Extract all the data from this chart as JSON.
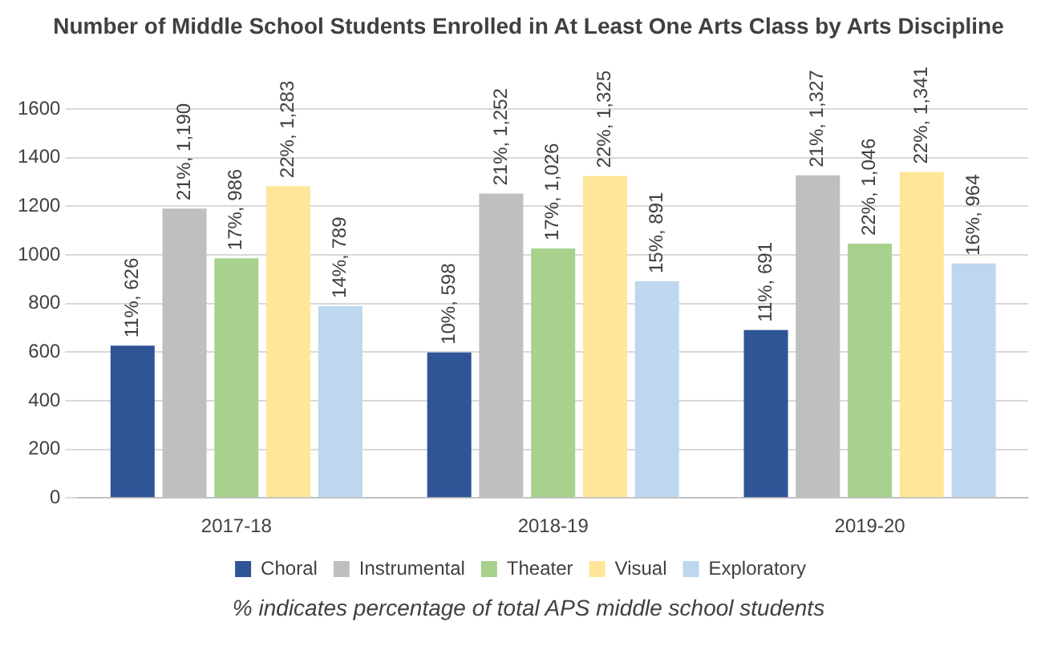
{
  "chart_data": {
    "type": "bar",
    "title": "Number of Middle School Students Enrolled in At Least One Arts Class by Arts Discipline",
    "categories": [
      "2017-18",
      "2018-19",
      "2019-20"
    ],
    "series": [
      {
        "name": "Choral",
        "color": "#2f5597",
        "values": [
          626,
          598,
          691
        ],
        "value_labels": [
          "11%, 626",
          "10%, 598",
          "11%, 691"
        ]
      },
      {
        "name": "Instrumental",
        "color": "#bfbfbf",
        "values": [
          1190,
          1252,
          1327
        ],
        "value_labels": [
          "21%, 1,190",
          "21%, 1,252",
          "21%, 1,327"
        ]
      },
      {
        "name": "Theater",
        "color": "#a9d18e",
        "values": [
          986,
          1026,
          1046
        ],
        "value_labels": [
          "17%, 986",
          "17%, 1,026",
          "22%, 1,046"
        ]
      },
      {
        "name": "Visual",
        "color": "#ffe699",
        "values": [
          1283,
          1325,
          1341
        ],
        "value_labels": [
          "22%, 1,283",
          "22%, 1,325",
          "22%, 1,341"
        ]
      },
      {
        "name": "Exploratory",
        "color": "#bdd7ee",
        "values": [
          789,
          891,
          964
        ],
        "value_labels": [
          "14%, 789",
          "15%, 891",
          "16%, 964"
        ]
      }
    ],
    "ylim": [
      0,
      1600
    ],
    "yticks": [
      0,
      200,
      400,
      600,
      800,
      1000,
      1200,
      1400,
      1600
    ],
    "grid": "y",
    "legend": "bottom",
    "annotations": [
      "% indicates percentage of total APS middle school students"
    ]
  }
}
